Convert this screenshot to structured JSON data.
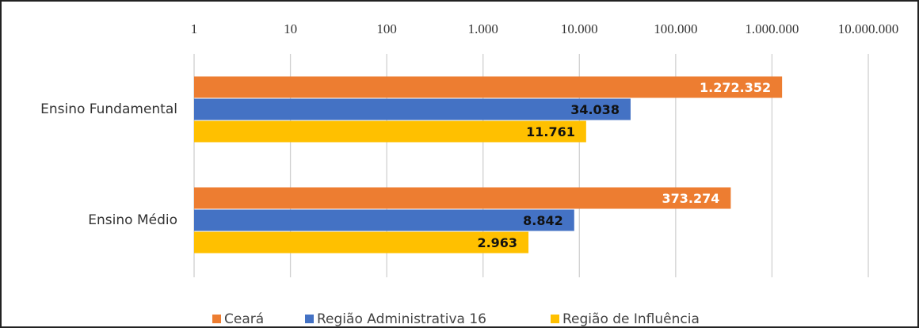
{
  "chart_data": {
    "type": "bar",
    "orientation": "horizontal",
    "categories": [
      "Ensino Fundamental",
      "Ensino Médio"
    ],
    "series": [
      {
        "name": "Ceará",
        "color": "#ED7D31",
        "label_color": "#ffffff",
        "values": [
          1272352,
          373274
        ],
        "value_labels": [
          "1.272.352",
          "373.274"
        ]
      },
      {
        "name": "Região Administrativa 16",
        "color": "#4472C4",
        "label_color": "#111111",
        "values": [
          34038,
          8842
        ],
        "value_labels": [
          "34.038",
          "8.842"
        ]
      },
      {
        "name": "Região de Influência",
        "color": "#FFC000",
        "label_color": "#111111",
        "values": [
          11761,
          2963
        ],
        "value_labels": [
          "11.761",
          "2.963"
        ]
      }
    ],
    "xlim": [
      1,
      10000000
    ],
    "log_x": true,
    "xticks": [
      1,
      10,
      100,
      {
        "value": 1000,
        "label": "1.000"
      },
      {
        "value": 10000,
        "label": "10.000"
      },
      {
        "value": 100000,
        "label": "100.000"
      },
      {
        "value": 1000000,
        "label": "1.000.000"
      },
      {
        "value": 10000000,
        "label": "10.000.000"
      }
    ],
    "grid": true,
    "legend": "bottom"
  }
}
